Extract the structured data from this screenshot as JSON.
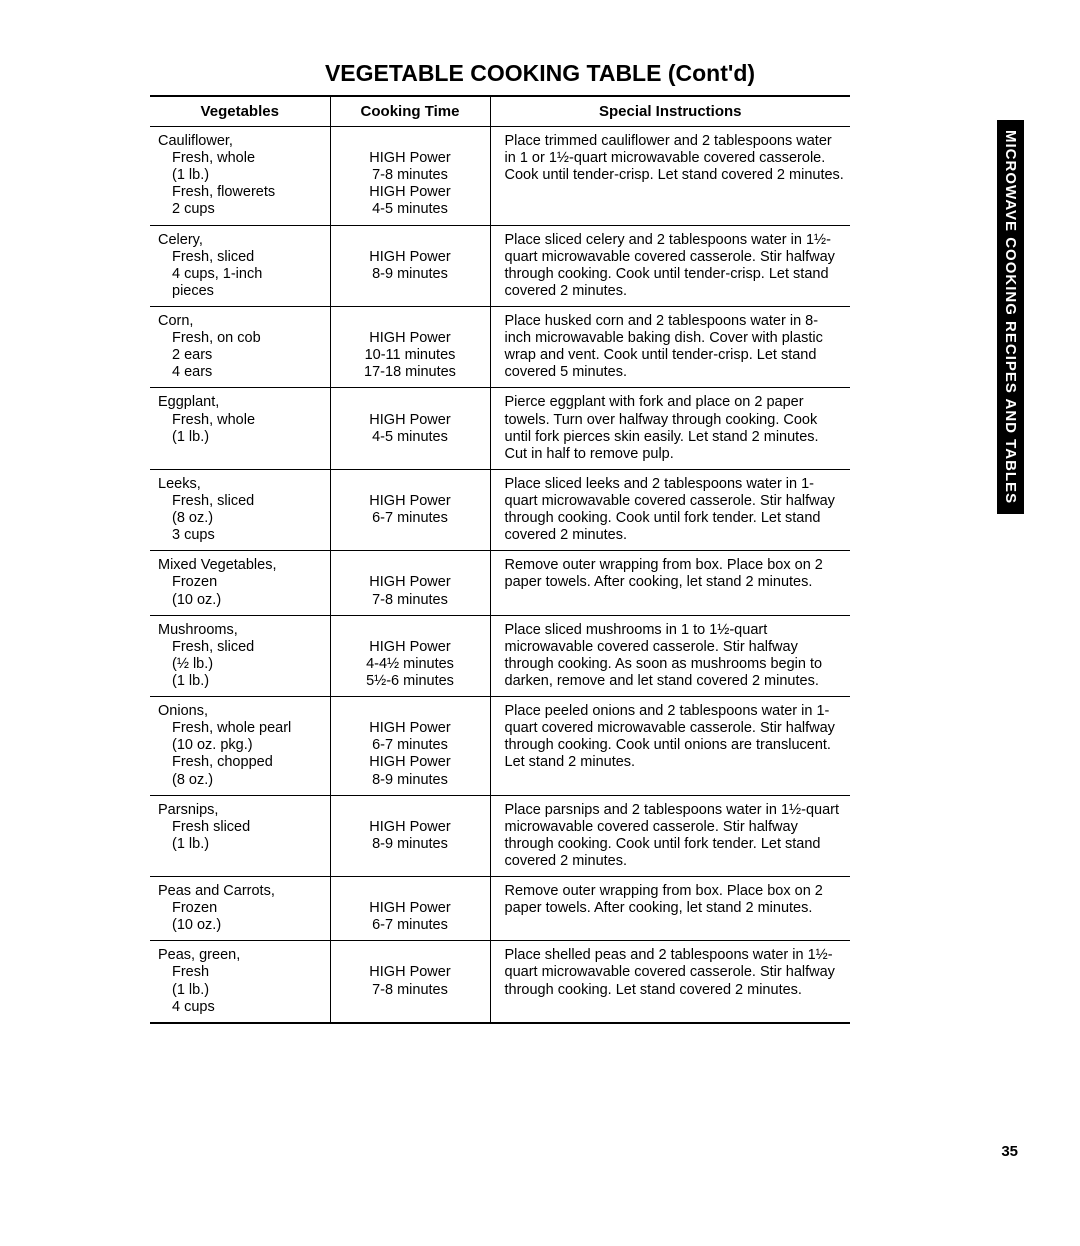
{
  "title": "VEGETABLE COOKING TABLE (Cont'd)",
  "side_tab": "MICROWAVE COOKING RECIPES AND TABLES",
  "page_number": "35",
  "headers": {
    "vegetables": "Vegetables",
    "cooking_time": "Cooking Time",
    "special_instructions": "Special Instructions"
  },
  "rows": [
    {
      "veg_main": "Cauliflower,",
      "veg_subs": [
        "Fresh, whole",
        "(1 lb.)",
        "Fresh, flowerets",
        "2 cups"
      ],
      "time_lines": [
        "",
        "HIGH Power",
        "7-8 minutes",
        "HIGH Power",
        "4-5 minutes"
      ],
      "instructions": "Place trimmed cauliflower and 2 tablespoons water in 1 or 1½-quart microwavable covered casserole. Cook until tender-crisp. Let stand covered 2 minutes."
    },
    {
      "veg_main": "Celery,",
      "veg_subs": [
        "Fresh, sliced",
        "4 cups, 1-inch",
        "pieces"
      ],
      "time_lines": [
        "",
        "HIGH Power",
        "8-9 minutes"
      ],
      "instructions": "Place sliced celery and 2 tablespoons water in 1½-quart microwavable covered casserole. Stir halfway through cooking. Cook until tender-crisp. Let stand covered 2 minutes."
    },
    {
      "veg_main": "Corn,",
      "veg_subs": [
        "Fresh, on cob",
        "2 ears",
        "4 ears"
      ],
      "time_lines": [
        "",
        "HIGH Power",
        "10-11 minutes",
        "17-18 minutes"
      ],
      "instructions": "Place husked corn and 2 tablespoons water in 8-inch microwavable baking dish. Cover with plastic wrap and vent. Cook until tender-crisp. Let stand covered 5 minutes."
    },
    {
      "veg_main": "Eggplant,",
      "veg_subs": [
        "Fresh, whole",
        "(1 lb.)"
      ],
      "time_lines": [
        "",
        "HIGH Power",
        "4-5 minutes"
      ],
      "instructions": "Pierce eggplant with fork and place on 2 paper towels. Turn over halfway through cooking. Cook until fork pierces skin easily. Let stand 2 minutes. Cut in half to remove pulp."
    },
    {
      "veg_main": "Leeks,",
      "veg_subs": [
        "Fresh, sliced",
        "(8 oz.)",
        "3 cups"
      ],
      "time_lines": [
        "",
        "HIGH Power",
        "6-7 minutes"
      ],
      "instructions": "Place sliced leeks and 2 tablespoons water in 1-quart microwavable covered casserole. Stir halfway through cooking. Cook until fork tender. Let stand covered 2 minutes."
    },
    {
      "veg_main": "Mixed Vegetables,",
      "veg_subs": [
        "Frozen",
        "(10 oz.)"
      ],
      "time_lines": [
        "",
        "HIGH Power",
        "7-8 minutes"
      ],
      "instructions": "Remove outer wrapping from box. Place box on 2 paper towels. After cooking, let stand 2 minutes."
    },
    {
      "veg_main": "Mushrooms,",
      "veg_subs": [
        "Fresh, sliced",
        "(½ lb.)",
        "(1 lb.)"
      ],
      "time_lines": [
        "",
        "HIGH Power",
        "4-4½ minutes",
        "5½-6 minutes"
      ],
      "instructions": "Place sliced mushrooms in 1 to 1½-quart microwavable covered casserole. Stir halfway through cooking. As soon as mushrooms begin to darken, remove and let stand covered 2 minutes."
    },
    {
      "veg_main": "Onions,",
      "veg_subs": [
        "Fresh, whole pearl",
        "(10 oz. pkg.)",
        "Fresh, chopped",
        "(8 oz.)"
      ],
      "time_lines": [
        "",
        "HIGH Power",
        "6-7 minutes",
        "HIGH Power",
        "8-9 minutes"
      ],
      "instructions": "Place peeled onions and 2 tablespoons water in 1-quart covered microwavable casserole. Stir halfway through cooking. Cook until onions are translucent. Let stand 2 minutes."
    },
    {
      "veg_main": "Parsnips,",
      "veg_subs": [
        "Fresh sliced",
        "(1 lb.)"
      ],
      "time_lines": [
        "",
        "HIGH Power",
        "8-9 minutes"
      ],
      "instructions": "Place parsnips and 2 tablespoons water in 1½-quart microwavable covered casserole. Stir halfway through cooking. Cook until fork tender. Let stand covered 2 minutes."
    },
    {
      "veg_main": "Peas and Carrots,",
      "veg_subs": [
        "Frozen",
        "(10 oz.)"
      ],
      "time_lines": [
        "",
        "HIGH Power",
        "6-7 minutes"
      ],
      "instructions": "Remove outer wrapping from box. Place box on 2 paper towels. After cooking, let stand 2 minutes."
    },
    {
      "veg_main": "Peas, green,",
      "veg_subs": [
        "Fresh",
        "(1 lb.)",
        "4 cups"
      ],
      "time_lines": [
        "",
        "HIGH Power",
        "7-8 minutes"
      ],
      "instructions": "Place shelled peas and 2 tablespoons water in 1½-quart microwavable covered casserole. Stir halfway through cooking. Let stand covered 2 minutes."
    }
  ]
}
